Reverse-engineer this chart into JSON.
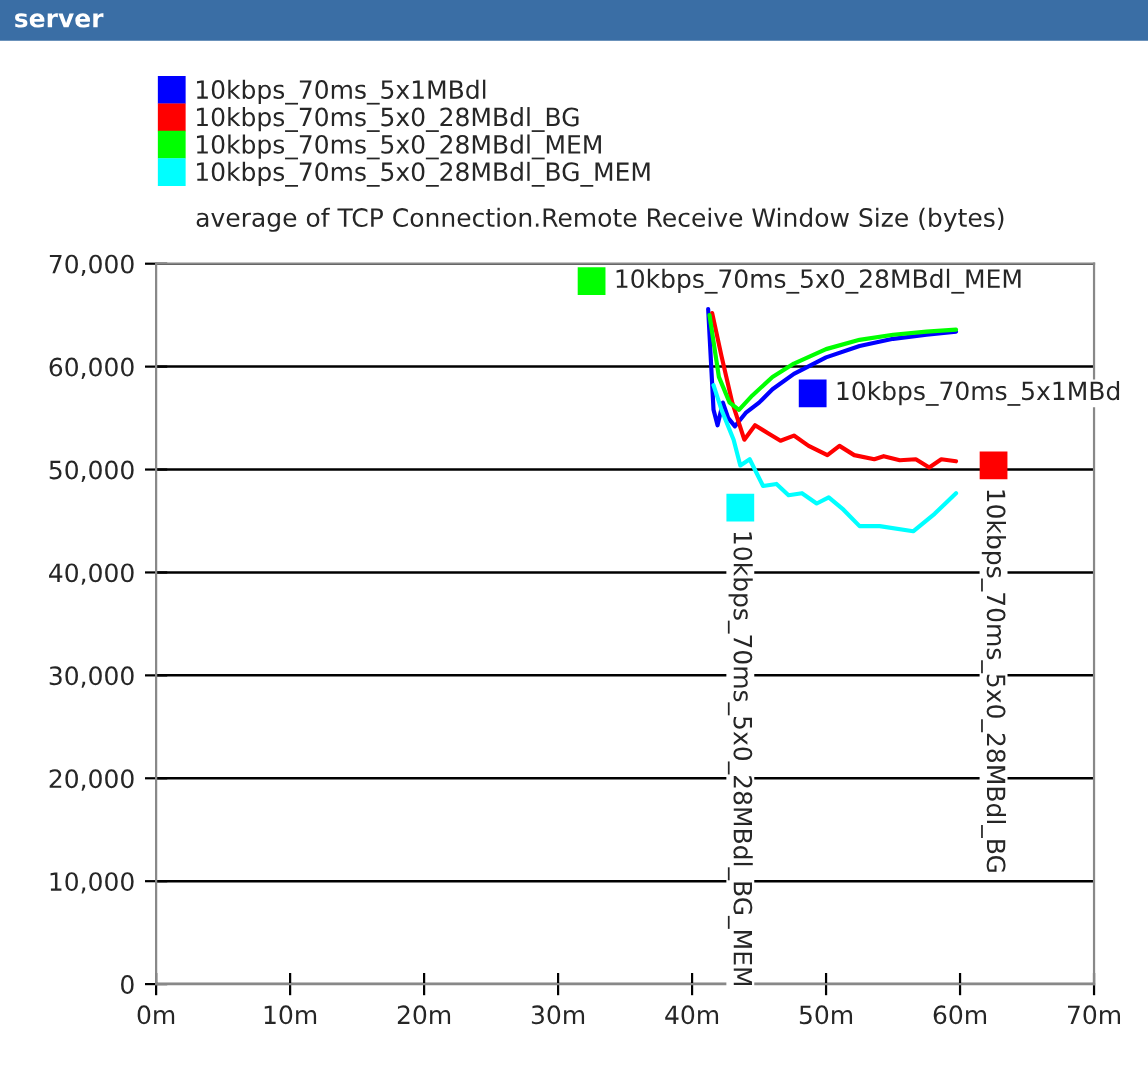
{
  "chart_data": {
    "type": "line",
    "title": "server",
    "annotations": [
      "average of TCP Connection.Remote Receive Window Size (bytes)",
      {
        "text": "10kbps_70ms_5x0_28MBdl_MEM",
        "x": 32.5,
        "y": 68300
      },
      {
        "text": "10kbps_70ms_5x1MBd",
        "x": 49,
        "y": 57400
      },
      {
        "text": "10kbps_70ms_5x0_28MBdl_BG_MEM",
        "x": 43.6,
        "y": 46300
      },
      {
        "text": "10kbps_70ms_5x0_28MBdl_BG",
        "x": 62.5,
        "y": 50400
      }
    ],
    "series": [
      {
        "name": "10kbps_70ms_5x1MBdl",
        "color": "#0000ff",
        "x": [
          41.2,
          41.6,
          41.9,
          42.3,
          42.7,
          43.2,
          44,
          45,
          46,
          47.6,
          50,
          52.5,
          55,
          57.5,
          59.7
        ],
        "values": [
          65600,
          55800,
          54300,
          56500,
          55000,
          54200,
          55500,
          56500,
          57800,
          59300,
          60900,
          62000,
          62700,
          63100,
          63400
        ]
      },
      {
        "name": "10kbps_70ms_5x0_28MBdl_BG",
        "color": "#ff0000",
        "x": [
          41.5,
          42.2,
          43,
          43.9,
          44.7,
          45.7,
          46.6,
          47.6,
          48.7,
          50.1,
          51,
          52.1,
          53.6,
          54.3,
          55.5,
          56.7,
          57.7,
          58.6,
          59.7
        ],
        "values": [
          65200,
          61000,
          56500,
          52900,
          54300,
          53500,
          52800,
          53300,
          52300,
          51400,
          52300,
          51400,
          51000,
          51300,
          50900,
          51000,
          50200,
          51000,
          50800
        ]
      },
      {
        "name": "10kbps_70ms_5x0_28MBdl_MEM",
        "color": "#00ff00",
        "x": [
          41.3,
          42,
          42.8,
          43.5,
          44.5,
          46,
          47.6,
          50,
          52.5,
          55,
          57.5,
          59.7
        ],
        "values": [
          65000,
          59000,
          56500,
          55800,
          57200,
          59000,
          60300,
          61700,
          62600,
          63100,
          63400,
          63600
        ]
      },
      {
        "name": "10kbps_70ms_5x0_28MBdl_BG_MEM",
        "color": "#00ffff",
        "x": [
          41.6,
          42.2,
          43.1,
          43.6,
          44.3,
          45.3,
          46.3,
          47.2,
          48.2,
          49.3,
          50.2,
          51.3,
          52.5,
          54,
          56.5,
          58.1,
          59.7
        ],
        "values": [
          58200,
          55800,
          52900,
          50400,
          51000,
          48400,
          48600,
          47500,
          47700,
          46700,
          47300,
          46100,
          44500,
          44500,
          44000,
          45700,
          47700
        ]
      }
    ],
    "xlim": [
      0,
      70
    ],
    "xticks": [
      {
        "value": 0,
        "label": "0m"
      },
      {
        "value": 10,
        "label": "10m"
      },
      {
        "value": 20,
        "label": "20m"
      },
      {
        "value": 30,
        "label": "30m"
      },
      {
        "value": 40,
        "label": "40m"
      },
      {
        "value": 50,
        "label": "50m"
      },
      {
        "value": 60,
        "label": "60m"
      },
      {
        "value": 70,
        "label": "70m"
      }
    ],
    "ylim": [
      0,
      70000
    ],
    "yticks": [
      {
        "value": 0,
        "label": "0"
      },
      {
        "value": 10000,
        "label": "10,000"
      },
      {
        "value": 20000,
        "label": "20,000"
      },
      {
        "value": 30000,
        "label": "30,000"
      },
      {
        "value": 40000,
        "label": "40,000"
      },
      {
        "value": 50000,
        "label": "50,000"
      },
      {
        "value": 60000,
        "label": "60,000"
      },
      {
        "value": 70000,
        "label": "70,000"
      }
    ],
    "grid": "y",
    "legend": "top left",
    "line_style": "solid",
    "marker": "none"
  }
}
